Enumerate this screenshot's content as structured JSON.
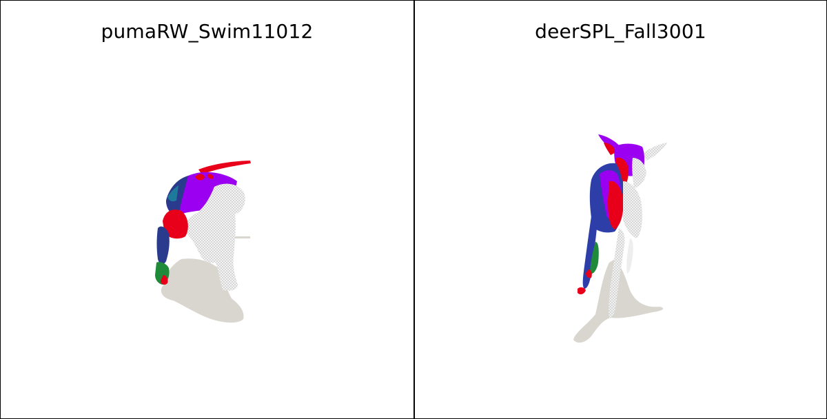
{
  "panels": [
    {
      "title": "pumaRW_Swim11012",
      "subject": "puma-mesh",
      "colors": {
        "red": "#e8001a",
        "purple": "#9b00f0",
        "blue": "#2a3a8c",
        "teal": "#1e7a9a",
        "green": "#1e8a3a",
        "mesh": "#f2f2f2",
        "shadow": "#d9d6cf"
      }
    },
    {
      "title": "deerSPL_Fall3001",
      "subject": "deer-mesh",
      "colors": {
        "red": "#e8001a",
        "purple": "#9b00f0",
        "blue": "#2d3ea8",
        "green": "#1e8a3a",
        "mesh": "#f0f0f0",
        "shadow": "#d9d6cf"
      }
    }
  ]
}
